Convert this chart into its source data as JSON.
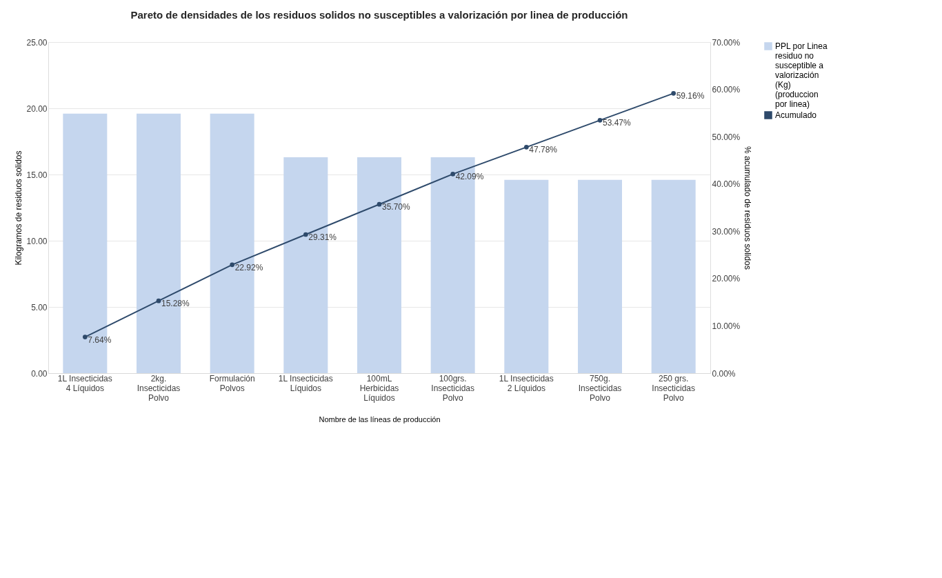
{
  "chart_data": {
    "type": "bar",
    "title": "Pareto de densidades de los residuos solidos no susceptibles a valorización por linea de producción",
    "xlabel": "Nombre de las líneas de producción",
    "ylabel": "Kilogramos de residuos solidos",
    "y2label": "% acumulado de residuos solidos",
    "categories": [
      "1L Insecticidas 4 Líquidos",
      "2kg. Insecticidas Polvo",
      "Formulación Polvos",
      "1L Insecticidas Líquidos",
      "100mL Herbicidas Líquidos",
      "100grs. Insecticidas Polvo",
      "1L Insecticidas 2 Líquidos",
      "750g. Insecticidas Polvo",
      "250 grs. Insecticidas Polvo"
    ],
    "series": [
      {
        "name": "PPL por Linea residuo no susceptible a valorización (Kg) (produccion por linea)",
        "color": "#c5d6ee",
        "values": [
          19.6,
          19.6,
          19.6,
          16.3,
          16.3,
          16.3,
          14.6,
          14.6,
          14.6
        ]
      },
      {
        "name": "Acumulado",
        "type": "line",
        "axis": "y2",
        "color": "#2e4a6b",
        "marker": "circle",
        "values": [
          7.64,
          15.28,
          22.92,
          29.31,
          35.7,
          42.09,
          47.78,
          53.47,
          59.16
        ],
        "value_labels": [
          "7.64%",
          "15.28%",
          "22.92%",
          "29.31%",
          "35.70%",
          "42.09%",
          "47.78%",
          "53.47%",
          "59.16%"
        ]
      }
    ],
    "ylim": [
      0,
      25
    ],
    "yticks": [
      {
        "value": 0,
        "label": "0.00"
      },
      {
        "value": 5,
        "label": "5.00"
      },
      {
        "value": 10,
        "label": "10.00"
      },
      {
        "value": 15,
        "label": "15.00"
      },
      {
        "value": 20,
        "label": "20.00"
      },
      {
        "value": 25,
        "label": "25.00"
      }
    ],
    "y2lim": [
      0,
      70
    ],
    "y2ticks": [
      {
        "value": 0,
        "label": "0.00%"
      },
      {
        "value": 10,
        "label": "10.00%"
      },
      {
        "value": 20,
        "label": "20.00%"
      },
      {
        "value": 30,
        "label": "30.00%"
      },
      {
        "value": 40,
        "label": "40.00%"
      },
      {
        "value": 50,
        "label": "50.00%"
      },
      {
        "value": 60,
        "label": "60.00%"
      },
      {
        "value": 70,
        "label": "70.00%"
      }
    ],
    "grid": "y",
    "legend": "right"
  }
}
